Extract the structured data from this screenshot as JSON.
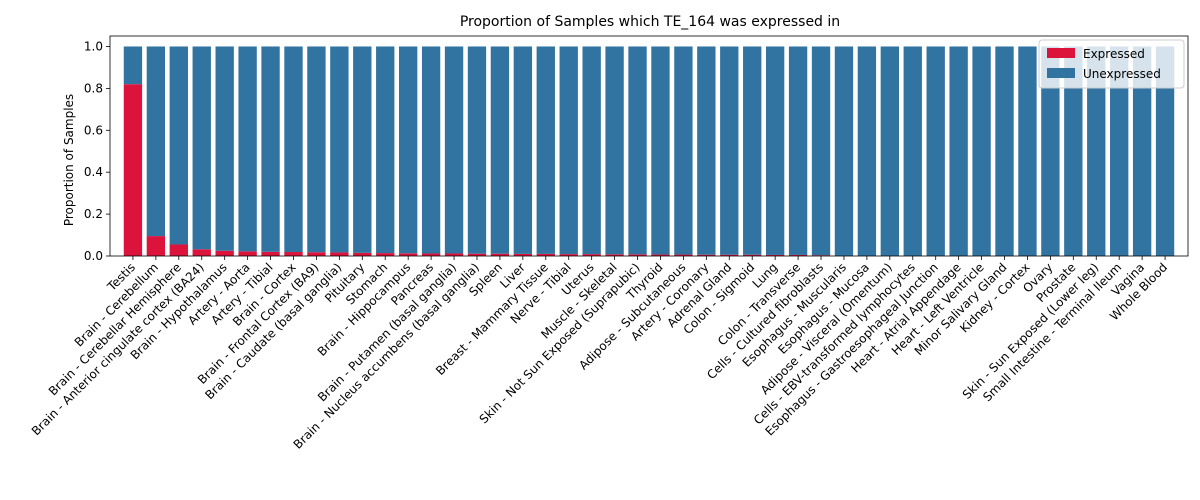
{
  "chart_data": {
    "type": "bar",
    "stacked": true,
    "title": "Proportion of Samples which TE_164 was expressed in",
    "xlabel": "",
    "ylabel": "Proportion of Samples",
    "ylim": [
      0,
      1.05
    ],
    "yticks": [
      "0.0",
      "0.2",
      "0.4",
      "0.6",
      "0.8",
      "1.0"
    ],
    "ytick_values": [
      0,
      0.2,
      0.4,
      0.6,
      0.8,
      1.0
    ],
    "grid": false,
    "legend_position": "top-right",
    "categories": [
      "Testis",
      "Brain - Cerebellum",
      "Brain - Cerebellar Hemisphere",
      "Brain - Anterior cingulate cortex (BA24)",
      "Brain - Hypothalamus",
      "Artery - Aorta",
      "Artery - Tibial",
      "Brain - Cortex",
      "Brain - Frontal Cortex (BA9)",
      "Brain - Caudate (basal ganglia)",
      "Pituitary",
      "Stomach",
      "Brain - Hippocampus",
      "Pancreas",
      "Brain - Putamen (basal ganglia)",
      "Brain - Nucleus accumbens (basal ganglia)",
      "Spleen",
      "Liver",
      "Breast - Mammary Tissue",
      "Nerve - Tibial",
      "Uterus",
      "Muscle - Skeletal",
      "Skin - Not Sun Exposed (Suprapubic)",
      "Thyroid",
      "Adipose - Subcutaneous",
      "Artery - Coronary",
      "Adrenal Gland",
      "Colon - Sigmoid",
      "Lung",
      "Colon - Transverse",
      "Cells - Cultured fibroblasts",
      "Esophagus - Muscularis",
      "Esophagus - Mucosa",
      "Adipose - Visceral (Omentum)",
      "Cells - EBV-transformed lymphocytes",
      "Esophagus - Gastroesophageal Junction",
      "Heart - Atrial Appendage",
      "Heart - Left Ventricle",
      "Minor Salivary Gland",
      "Kidney - Cortex",
      "Ovary",
      "Prostate",
      "Skin - Sun Exposed (Lower leg)",
      "Small Intestine - Terminal Ileum",
      "Vagina",
      "Whole Blood"
    ],
    "series": [
      {
        "name": "Expressed",
        "color": "#dc143c",
        "values": [
          0.82,
          0.095,
          0.055,
          0.032,
          0.025,
          0.022,
          0.02,
          0.019,
          0.018,
          0.017,
          0.015,
          0.014,
          0.013,
          0.012,
          0.012,
          0.011,
          0.011,
          0.01,
          0.01,
          0.009,
          0.009,
          0.008,
          0.008,
          0.007,
          0.007,
          0.006,
          0.006,
          0.006,
          0.005,
          0.005,
          0.004,
          0,
          0,
          0,
          0,
          0,
          0,
          0,
          0,
          0,
          0,
          0,
          0,
          0,
          0,
          0
        ]
      },
      {
        "name": "Unexpressed",
        "color": "#3274a1",
        "values": [
          0.18,
          0.905,
          0.945,
          0.968,
          0.975,
          0.978,
          0.98,
          0.981,
          0.982,
          0.983,
          0.985,
          0.986,
          0.987,
          0.988,
          0.988,
          0.989,
          0.989,
          0.99,
          0.99,
          0.991,
          0.991,
          0.992,
          0.992,
          0.993,
          0.993,
          0.994,
          0.994,
          0.994,
          0.995,
          0.995,
          0.996,
          1,
          1,
          1,
          1,
          1,
          1,
          1,
          1,
          1,
          1,
          1,
          1,
          1,
          1,
          1
        ]
      }
    ]
  }
}
